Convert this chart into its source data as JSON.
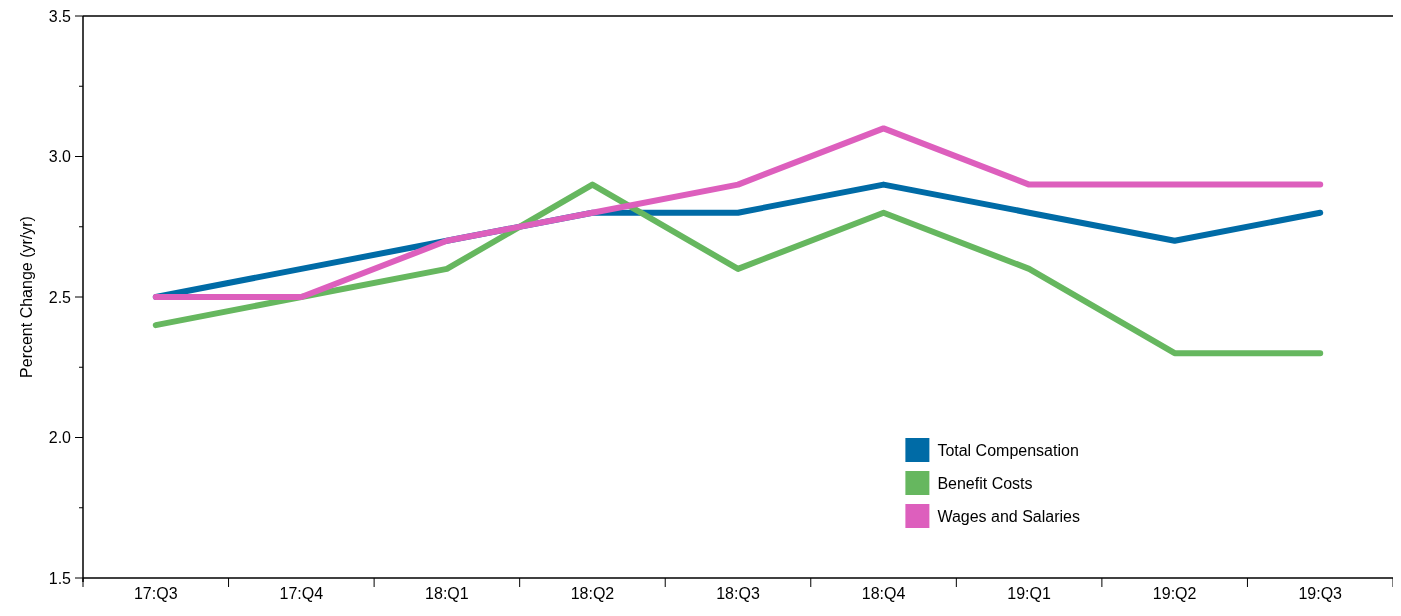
{
  "chart_data": {
    "type": "line",
    "ylabel": "Percent Change (yr/yr)",
    "categories": [
      "17:Q3",
      "17:Q4",
      "18:Q1",
      "18:Q2",
      "18:Q3",
      "18:Q4",
      "19:Q1",
      "19:Q2",
      "19:Q3"
    ],
    "series": [
      {
        "name": "Total Compensation",
        "color": "#006ba6",
        "values": [
          2.5,
          2.6,
          2.7,
          2.8,
          2.8,
          2.9,
          2.8,
          2.7,
          2.8
        ]
      },
      {
        "name": "Benefit Costs",
        "color": "#66b75f",
        "values": [
          2.4,
          2.5,
          2.6,
          2.9,
          2.6,
          2.8,
          2.6,
          2.3,
          2.3
        ]
      },
      {
        "name": "Wages and Salaries",
        "color": "#dd5fbd",
        "values": [
          2.5,
          2.5,
          2.7,
          2.8,
          2.9,
          3.1,
          2.9,
          2.9,
          2.9
        ]
      }
    ],
    "ylim": [
      1.5,
      3.5
    ],
    "yticks": [
      1.5,
      {
        "value": 1.75,
        "label": null
      },
      {
        "value": 2,
        "label": "2.0"
      },
      {
        "value": 2.25,
        "label": null
      },
      2.5,
      {
        "value": 2.75,
        "label": null
      },
      {
        "value": 3,
        "label": "3.0"
      },
      {
        "value": 3.25,
        "label": null
      },
      3.5
    ],
    "grid": false,
    "legend": "bottom right",
    "marker": "none",
    "line_style": "solid"
  }
}
